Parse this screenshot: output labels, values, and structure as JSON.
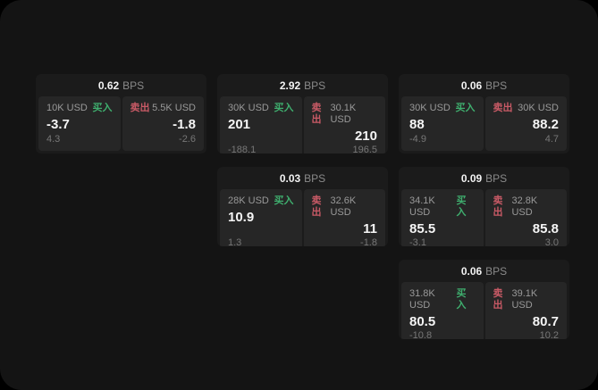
{
  "labels": {
    "bps_unit": "BPS",
    "buy": "买入",
    "sell": "卖出"
  },
  "colors": {
    "page_outside": "#000000",
    "window_bg": "#141414",
    "card_bg": "#1b1b1b",
    "panel_bg": "#262626",
    "text_primary": "#f5f5f5",
    "text_secondary": "#8a8a8a",
    "buy_accent": "#3fae6e",
    "sell_accent": "#c95a66"
  },
  "cards": [
    {
      "row": 1,
      "col": 1,
      "bps": "0.62",
      "buy": {
        "amount": "10K USD",
        "price": "-3.7",
        "delta": "4.3"
      },
      "sell": {
        "amount": "5.5K USD",
        "price": "-1.8",
        "delta": "-2.6"
      }
    },
    {
      "row": 1,
      "col": 2,
      "bps": "2.92",
      "buy": {
        "amount": "30K USD",
        "price": "201",
        "delta": "-188.1"
      },
      "sell": {
        "amount": "30.1K USD",
        "price": "210",
        "delta": "196.5"
      }
    },
    {
      "row": 1,
      "col": 3,
      "bps": "0.06",
      "buy": {
        "amount": "30K USD",
        "price": "88",
        "delta": "-4.9"
      },
      "sell": {
        "amount": "30K USD",
        "price": "88.2",
        "delta": "4.7"
      }
    },
    {
      "row": 2,
      "col": 2,
      "bps": "0.03",
      "buy": {
        "amount": "28K USD",
        "price": "10.9",
        "delta": "1.3"
      },
      "sell": {
        "amount": "32.6K USD",
        "price": "11",
        "delta": "-1.8"
      }
    },
    {
      "row": 2,
      "col": 3,
      "bps": "0.09",
      "buy": {
        "amount": "34.1K USD",
        "price": "85.5",
        "delta": "-3.1"
      },
      "sell": {
        "amount": "32.8K USD",
        "price": "85.8",
        "delta": "3.0"
      }
    },
    {
      "row": 3,
      "col": 3,
      "bps": "0.06",
      "buy": {
        "amount": "31.8K USD",
        "price": "80.5",
        "delta": "-10.8"
      },
      "sell": {
        "amount": "39.1K USD",
        "price": "80.7",
        "delta": "10.2"
      }
    }
  ]
}
